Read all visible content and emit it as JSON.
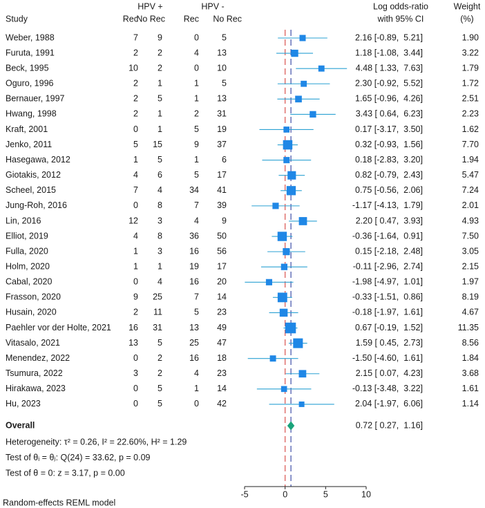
{
  "chart_data": {
    "type": "forest",
    "headers": {
      "study": "Study",
      "group_pos": "HPV +",
      "group_neg": "HPV -",
      "rec": "Rec",
      "norec": "No Rec",
      "effect_line1": "Log odds-ratio",
      "effect_line2": "with 95% CI",
      "weight_line1": "Weight",
      "weight_line2": "(%)"
    },
    "studies": [
      {
        "name": "Weber, 1988",
        "pos_rec": 7,
        "pos_norec": 9,
        "neg_rec": 0,
        "neg_norec": 5,
        "est": 2.16,
        "lo": -0.89,
        "hi": 5.21,
        "weight": 1.9
      },
      {
        "name": "Furuta, 1991",
        "pos_rec": 2,
        "pos_norec": 2,
        "neg_rec": 4,
        "neg_norec": 13,
        "est": 1.18,
        "lo": -1.08,
        "hi": 3.44,
        "weight": 3.22
      },
      {
        "name": "Beck, 1995",
        "pos_rec": 10,
        "pos_norec": 2,
        "neg_rec": 0,
        "neg_norec": 10,
        "est": 4.48,
        "lo": 1.33,
        "hi": 7.63,
        "weight": 1.79
      },
      {
        "name": "Oguro, 1996",
        "pos_rec": 2,
        "pos_norec": 1,
        "neg_rec": 1,
        "neg_norec": 5,
        "est": 2.3,
        "lo": -0.92,
        "hi": 5.52,
        "weight": 1.72
      },
      {
        "name": "Bernauer, 1997",
        "pos_rec": 2,
        "pos_norec": 5,
        "neg_rec": 1,
        "neg_norec": 13,
        "est": 1.65,
        "lo": -0.96,
        "hi": 4.26,
        "weight": 2.51
      },
      {
        "name": "Hwang, 1998",
        "pos_rec": 2,
        "pos_norec": 1,
        "neg_rec": 2,
        "neg_norec": 31,
        "est": 3.43,
        "lo": 0.64,
        "hi": 6.23,
        "weight": 2.23
      },
      {
        "name": "Kraft, 2001",
        "pos_rec": 0,
        "pos_norec": 1,
        "neg_rec": 5,
        "neg_norec": 19,
        "est": 0.17,
        "lo": -3.17,
        "hi": 3.5,
        "weight": 1.62
      },
      {
        "name": "Jenko, 2011",
        "pos_rec": 5,
        "pos_norec": 15,
        "neg_rec": 9,
        "neg_norec": 37,
        "est": 0.32,
        "lo": -0.93,
        "hi": 1.56,
        "weight": 7.7
      },
      {
        "name": "Hasegawa, 2012",
        "pos_rec": 1,
        "pos_norec": 5,
        "neg_rec": 1,
        "neg_norec": 6,
        "est": 0.18,
        "lo": -2.83,
        "hi": 3.2,
        "weight": 1.94
      },
      {
        "name": "Giotakis, 2012",
        "pos_rec": 4,
        "pos_norec": 6,
        "neg_rec": 5,
        "neg_norec": 17,
        "est": 0.82,
        "lo": -0.79,
        "hi": 2.43,
        "weight": 5.47
      },
      {
        "name": "Scheel, 2015",
        "pos_rec": 7,
        "pos_norec": 4,
        "neg_rec": 34,
        "neg_norec": 41,
        "est": 0.75,
        "lo": -0.56,
        "hi": 2.06,
        "weight": 7.24
      },
      {
        "name": "Jung-Roh, 2016",
        "pos_rec": 0,
        "pos_norec": 8,
        "neg_rec": 7,
        "neg_norec": 39,
        "est": -1.17,
        "lo": -4.13,
        "hi": 1.79,
        "weight": 2.01
      },
      {
        "name": "Lin, 2016",
        "pos_rec": 12,
        "pos_norec": 3,
        "neg_rec": 4,
        "neg_norec": 9,
        "est": 2.2,
        "lo": 0.47,
        "hi": 3.93,
        "weight": 4.93
      },
      {
        "name": "Elliot, 2019",
        "pos_rec": 4,
        "pos_norec": 8,
        "neg_rec": 36,
        "neg_norec": 50,
        "est": -0.36,
        "lo": -1.64,
        "hi": 0.91,
        "weight": 7.5
      },
      {
        "name": "Fulla, 2020",
        "pos_rec": 1,
        "pos_norec": 3,
        "neg_rec": 16,
        "neg_norec": 56,
        "est": 0.15,
        "lo": -2.18,
        "hi": 2.48,
        "weight": 3.05
      },
      {
        "name": "Holm, 2020",
        "pos_rec": 1,
        "pos_norec": 1,
        "neg_rec": 19,
        "neg_norec": 17,
        "est": -0.11,
        "lo": -2.96,
        "hi": 2.74,
        "weight": 2.15
      },
      {
        "name": "Cabal, 2020",
        "pos_rec": 0,
        "pos_norec": 4,
        "neg_rec": 16,
        "neg_norec": 20,
        "est": -1.98,
        "lo": -4.97,
        "hi": 1.01,
        "weight": 1.97
      },
      {
        "name": "Frasson, 2020",
        "pos_rec": 9,
        "pos_norec": 25,
        "neg_rec": 7,
        "neg_norec": 14,
        "est": -0.33,
        "lo": -1.51,
        "hi": 0.86,
        "weight": 8.19
      },
      {
        "name": "Husain, 2020",
        "pos_rec": 2,
        "pos_norec": 11,
        "neg_rec": 5,
        "neg_norec": 23,
        "est": -0.18,
        "lo": -1.97,
        "hi": 1.61,
        "weight": 4.67
      },
      {
        "name": "Paehler vor der Holte, 2021",
        "pos_rec": 16,
        "pos_norec": 31,
        "neg_rec": 13,
        "neg_norec": 49,
        "est": 0.67,
        "lo": -0.19,
        "hi": 1.52,
        "weight": 11.35
      },
      {
        "name": "Vitasalo, 2021",
        "pos_rec": 13,
        "pos_norec": 5,
        "neg_rec": 25,
        "neg_norec": 47,
        "est": 1.59,
        "lo": 0.45,
        "hi": 2.73,
        "weight": 8.56
      },
      {
        "name": "Menendez, 2022",
        "pos_rec": 0,
        "pos_norec": 2,
        "neg_rec": 16,
        "neg_norec": 18,
        "est": -1.5,
        "lo": -4.6,
        "hi": 1.61,
        "weight": 1.84
      },
      {
        "name": "Tsumura, 2022",
        "pos_rec": 3,
        "pos_norec": 2,
        "neg_rec": 4,
        "neg_norec": 23,
        "est": 2.15,
        "lo": 0.07,
        "hi": 4.23,
        "weight": 3.68
      },
      {
        "name": "Hirakawa, 2023",
        "pos_rec": 0,
        "pos_norec": 5,
        "neg_rec": 1,
        "neg_norec": 14,
        "est": -0.13,
        "lo": -3.48,
        "hi": 3.22,
        "weight": 1.61
      },
      {
        "name": "Hu, 2023",
        "pos_rec": 0,
        "pos_norec": 5,
        "neg_rec": 0,
        "neg_norec": 42,
        "est": 2.04,
        "lo": -1.97,
        "hi": 6.06,
        "weight": 1.14
      }
    ],
    "overall": {
      "label": "Overall",
      "est": 0.72,
      "lo": 0.27,
      "hi": 1.16
    },
    "stats_lines": [
      "Heterogeneity: τ² = 0.26, I² = 22.60%, H² = 1.29",
      "Test of θᵢ = θⱼ: Q(24) = 33.62, p = 0.09",
      "Test of θ = 0: z = 3.17, p = 0.00"
    ],
    "x_axis": {
      "min": -5,
      "max": 10,
      "ticks": [
        -5,
        0,
        5,
        10
      ]
    },
    "null_line": 0,
    "footnote": "Random-effects REML model",
    "colors": {
      "marker": "#1f87e6",
      "ci_line": "#2aa1d3",
      "diamond": "#1aa37a",
      "null_line": "#d9534f",
      "overall_line": "#3c4ea8",
      "text": "#1a1a1a"
    }
  }
}
